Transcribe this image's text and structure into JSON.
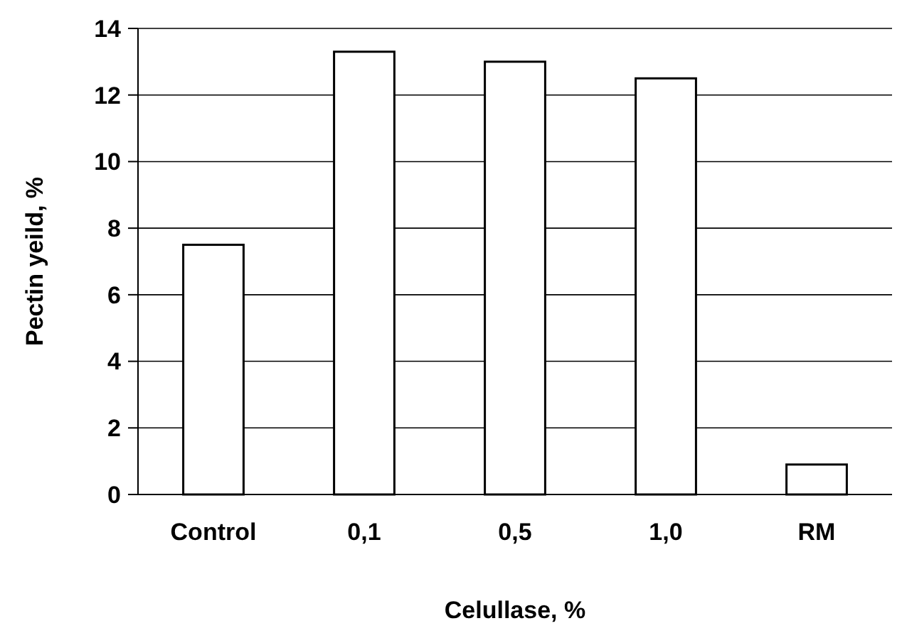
{
  "chart_data": {
    "type": "bar",
    "xlabel": "Celullase, %",
    "ylabel": "Pectin yeild, %",
    "categories": [
      "Control",
      "0,1",
      "0,5",
      "1,0",
      "RM"
    ],
    "values": [
      7.5,
      13.3,
      13.0,
      12.5,
      0.9
    ],
    "color": "#ffffff",
    "ylim": [
      0,
      14
    ],
    "yticks": [
      0,
      2,
      4,
      6,
      8,
      10,
      12,
      14
    ],
    "grid": "y"
  }
}
